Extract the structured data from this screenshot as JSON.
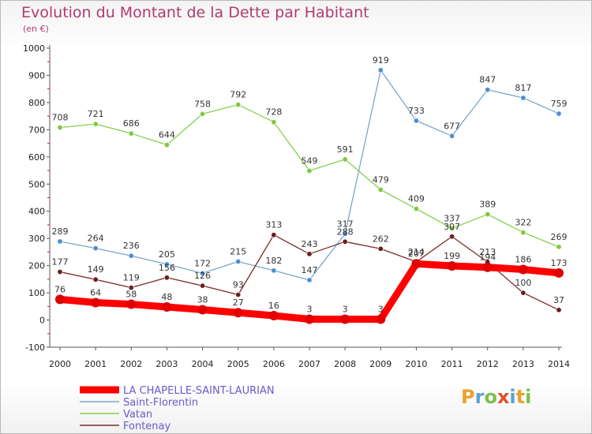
{
  "title": "Evolution du Montant de la Dette par Habitant",
  "unit_label": "(en €)",
  "logo_text": "Proxiti",
  "logo_colors": [
    "#e8a22c",
    "#5aa0d6",
    "#7cc04a",
    "#e2502e",
    "#5aa0d6",
    "#e8a22c",
    "#7cc04a"
  ],
  "chart_data": {
    "type": "line",
    "title": "Evolution du Montant de la Dette par Habitant",
    "ylabel": "(en €)",
    "xlabel": "",
    "ylim": [
      -100,
      1000
    ],
    "yticks": [
      -100,
      0,
      100,
      200,
      300,
      400,
      500,
      600,
      700,
      800,
      900,
      1000
    ],
    "x": [
      2000,
      2001,
      2002,
      2003,
      2004,
      2005,
      2006,
      2007,
      2008,
      2009,
      2010,
      2011,
      2012,
      2013,
      2014
    ],
    "grid": false,
    "legend_position": "bottom-left",
    "series": [
      {
        "name": "Vatan",
        "color": "#88d050",
        "marker_color": "#80c840",
        "values": [
          708,
          721,
          686,
          644,
          758,
          792,
          728,
          549,
          591,
          479,
          409,
          337,
          389,
          322,
          269
        ]
      },
      {
        "name": "Saint-Florentin",
        "color": "#7aa6cc",
        "marker_color": "#4d8fd0",
        "values": [
          289,
          264,
          236,
          205,
          172,
          215,
          182,
          147,
          317,
          919,
          733,
          677,
          847,
          817,
          759
        ]
      },
      {
        "name": "Fontenay",
        "color": "#7a2a2a",
        "marker_color": "#6a1f1f",
        "values": [
          177,
          149,
          119,
          156,
          126,
          93,
          313,
          243,
          288,
          262,
          214,
          307,
          213,
          100,
          37
        ]
      },
      {
        "name": "LA CHAPELLE-SAINT-LAURIAN",
        "color": "#ff0000",
        "marker_color": "#e00000",
        "values": [
          76,
          64,
          58,
          48,
          38,
          27,
          16,
          3,
          3,
          3,
          207,
          199,
          194,
          186,
          173
        ]
      }
    ],
    "legend_order": [
      "LA CHAPELLE-SAINT-LAURIAN",
      "Saint-Florentin",
      "Vatan",
      "Fontenay"
    ]
  }
}
